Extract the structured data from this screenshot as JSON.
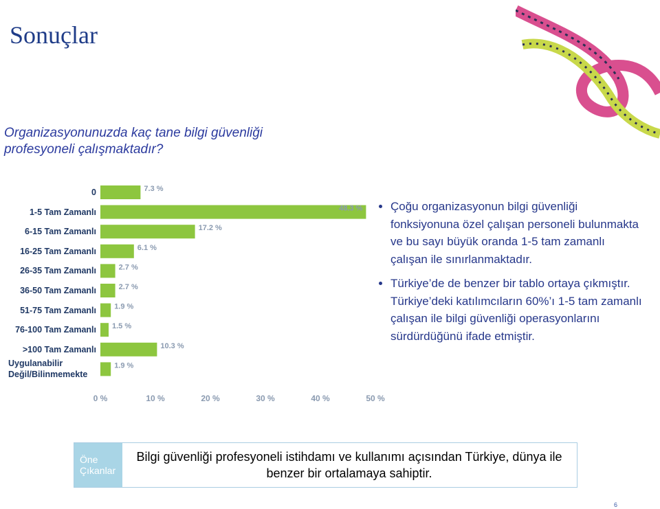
{
  "slide": {
    "title": "Sonuçlar",
    "question": "Organizasyonunuzda kaç tane bilgi güvenliği profesyoneli çalışmaktadır?",
    "bullets": [
      "Çoğu organizasyonun bilgi güvenliği fonksiyonuna özel çalışan personeli bulunmakta ve bu sayı büyük oranda 1-5 tam zamanlı çalışan ile sınırlanmaktadır.",
      "Türkiye’de de benzer bir tablo ortaya çıkmıştır. Türkiye’deki katılımcıların 60%’ı 1-5 tam zamanlı çalışan ile bilgi güvenliği operasyonlarını sürdürdüğünü ifade etmiştir."
    ],
    "highlight_label": "Öne Çıkanlar",
    "highlight_text": "Bilgi güvenliği profesyoneli istihdamı ve kullanımı açısından Türkiye, dünya ile benzer bir ortalamaya sahiptir.",
    "page_number": "6"
  },
  "chart_data": {
    "type": "bar",
    "orientation": "horizontal",
    "categories": [
      "0",
      "1-5 Tam Zamanlı",
      "6-15 Tam Zamanlı",
      "16-25 Tam Zamanlı",
      "26-35 Tam Zamanlı",
      "36-50 Tam Zamanlı",
      "51-75 Tam Zamanlı",
      "76-100 Tam Zamanlı",
      ">100 Tam Zamanlı",
      "Uygulanabilir Değil/Bilinmemekte"
    ],
    "values": [
      7.3,
      48.3,
      17.2,
      6.1,
      2.7,
      2.7,
      1.9,
      1.5,
      10.3,
      1.9
    ],
    "value_labels": [
      "7.3 %",
      "48.3 %",
      "17.2 %",
      "6.1 %",
      "2.7 %",
      "2.7 %",
      "1.9 %",
      "1.5 %",
      "10.3 %",
      "1.9 %"
    ],
    "color": "#8dc63f",
    "xlim": [
      0,
      50
    ],
    "xticks": [
      {
        "value": 0,
        "label": "0 %"
      },
      {
        "value": 10,
        "label": "10 %"
      },
      {
        "value": 20,
        "label": "20 %"
      },
      {
        "value": 30,
        "label": "30 %"
      },
      {
        "value": 40,
        "label": "40 %"
      },
      {
        "value": 50,
        "label": "50 %"
      }
    ],
    "grid": false
  }
}
